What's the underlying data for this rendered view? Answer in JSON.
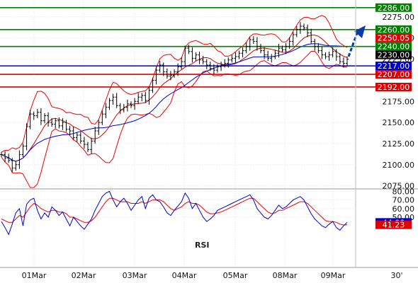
{
  "chart_data": [
    {
      "type": "line",
      "subtype": "candlestick-with-indicators",
      "title": "",
      "xlabel": "",
      "ylabel": "",
      "ylim": [
        2073,
        2290
      ],
      "x_ticks": [
        "01Mar",
        "02Mar",
        "03Mar",
        "04Mar",
        "05Mar",
        "08Mar",
        "09Mar",
        "30'"
      ],
      "y_ticks": [
        "2275.00",
        "2250.00",
        "2225.00",
        "2175.00",
        "2150.00",
        "2125.00",
        "2100.00",
        "2075.00"
      ],
      "resistance_levels": [
        {
          "value": 2286.0,
          "label": "2286.00",
          "color": "#008000"
        },
        {
          "value": 2260.0,
          "label": "2260.00",
          "color": "#008000"
        },
        {
          "value": 2240.0,
          "label": "2240.00",
          "color": "#008000"
        }
      ],
      "support_levels": [
        {
          "value": 2217.0,
          "label": "2217.00",
          "color": "#0000cc"
        },
        {
          "value": 2207.0,
          "label": "2207.00",
          "color": "#dd0000"
        },
        {
          "value": 2192.0,
          "label": "2192.00",
          "color": "#dd0000"
        }
      ],
      "price_labels": [
        {
          "value": 2250.05,
          "label": "2250.05",
          "color": "#dd0000"
        },
        {
          "value": 2230.0,
          "label": "2230.00",
          "color": "#000000"
        }
      ],
      "close_series": [
        2112,
        2108,
        2105,
        2096,
        2100,
        2112,
        2122,
        2145,
        2160,
        2158,
        2162,
        2152,
        2158,
        2150,
        2148,
        2152,
        2146,
        2150,
        2142,
        2140,
        2132,
        2135,
        2128,
        2124,
        2118,
        2128,
        2140,
        2150,
        2160,
        2168,
        2176,
        2180,
        2170,
        2165,
        2168,
        2172,
        2170,
        2175,
        2180,
        2182,
        2176,
        2188,
        2200,
        2212,
        2218,
        2210,
        2205,
        2206,
        2210,
        2216,
        2222,
        2238,
        2234,
        2226,
        2230,
        2224,
        2222,
        2218,
        2214,
        2212,
        2216,
        2218,
        2220,
        2224,
        2226,
        2228,
        2232,
        2235,
        2240,
        2248,
        2246,
        2240,
        2235,
        2230,
        2226,
        2228,
        2232,
        2238,
        2236,
        2240,
        2246,
        2254,
        2260,
        2264,
        2262,
        2256,
        2246,
        2240,
        2235,
        2230,
        2228,
        2230,
        2234,
        2228,
        2222,
        2220,
        2225
      ]
    },
    {
      "type": "line",
      "title": "RSI",
      "ylim": [
        0,
        82
      ],
      "y_ticks": [
        "80.00",
        "70.00",
        "60.00",
        "50.00"
      ],
      "value_labels": [
        {
          "value": 44.0,
          "label": "44.00",
          "color": "#0000cc"
        },
        {
          "value": 41.23,
          "label": "41.23",
          "color": "#dd0000"
        }
      ],
      "series": [
        {
          "values": [
            45,
            38,
            30,
            42,
            55,
            60,
            40,
            65,
            70,
            72,
            58,
            48,
            55,
            50,
            62,
            58,
            52,
            56,
            48,
            40,
            50,
            45,
            40,
            36,
            42,
            48,
            58,
            66,
            74,
            78,
            80,
            70,
            62,
            68,
            72,
            66,
            58,
            64,
            70,
            74,
            60,
            72,
            76,
            70,
            68,
            62,
            55,
            52,
            58,
            63,
            68,
            78,
            72,
            60,
            66,
            58,
            50,
            45,
            48,
            52,
            58,
            60,
            62,
            64,
            66,
            68,
            70,
            72,
            74,
            76,
            70,
            60,
            55,
            50,
            48,
            52,
            58,
            64,
            60,
            62,
            66,
            70,
            72,
            74,
            70,
            62,
            54,
            48,
            44,
            40,
            38,
            42,
            45,
            38,
            35,
            40,
            44
          ]
        },
        {
          "values": [
            48,
            46,
            44,
            44,
            48,
            52,
            50,
            56,
            62,
            66,
            64,
            60,
            58,
            56,
            58,
            58,
            56,
            56,
            54,
            50,
            50,
            48,
            46,
            44,
            44,
            46,
            50,
            56,
            62,
            68,
            72,
            72,
            70,
            68,
            68,
            68,
            66,
            66,
            66,
            68,
            66,
            68,
            70,
            70,
            70,
            68,
            64,
            60,
            58,
            60,
            62,
            66,
            68,
            66,
            66,
            64,
            60,
            56,
            54,
            54,
            55,
            56,
            58,
            60,
            62,
            64,
            66,
            68,
            70,
            72,
            72,
            68,
            64,
            60,
            56,
            54,
            55,
            58,
            58,
            60,
            62,
            64,
            66,
            68,
            68,
            66,
            62,
            58,
            54,
            50,
            46,
            45,
            45,
            44,
            42,
            41,
            41.23
          ]
        }
      ]
    }
  ]
}
